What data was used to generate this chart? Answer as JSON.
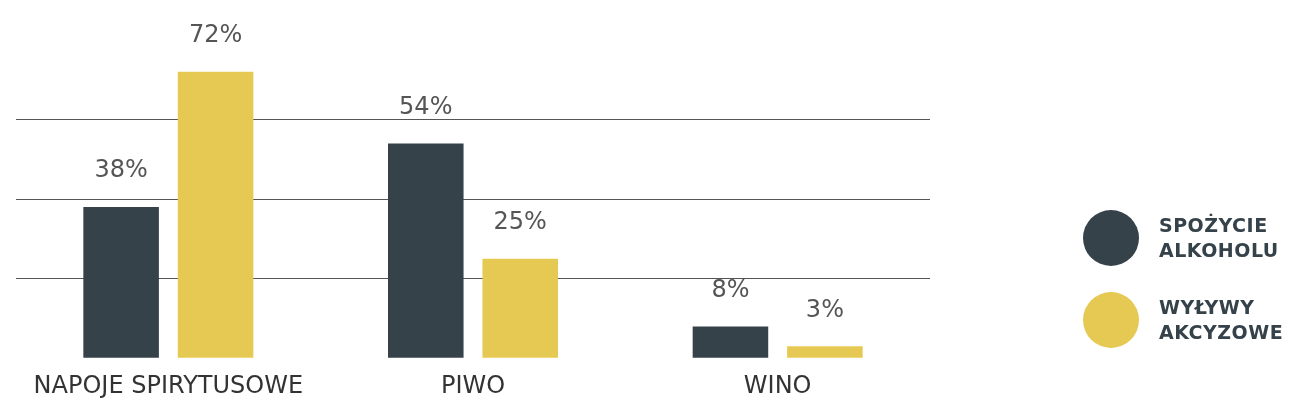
{
  "chart_data": {
    "type": "bar",
    "categories": [
      "NAPOJE SPIRYTUSOWE",
      "PIWO",
      "WINO"
    ],
    "series": [
      {
        "name": "SPOŻYCIE ALKOHOLU",
        "color": "#35424a",
        "values": [
          38,
          54,
          8
        ],
        "value_labels": [
          "38%",
          "54%",
          "8%"
        ]
      },
      {
        "name": "WYŁYWY AKCYZOWE",
        "color": "#e6c953",
        "values": [
          72,
          25,
          3
        ],
        "value_labels": [
          "72%",
          "25%",
          "3%"
        ]
      }
    ],
    "grid": "y",
    "legend": "right"
  }
}
